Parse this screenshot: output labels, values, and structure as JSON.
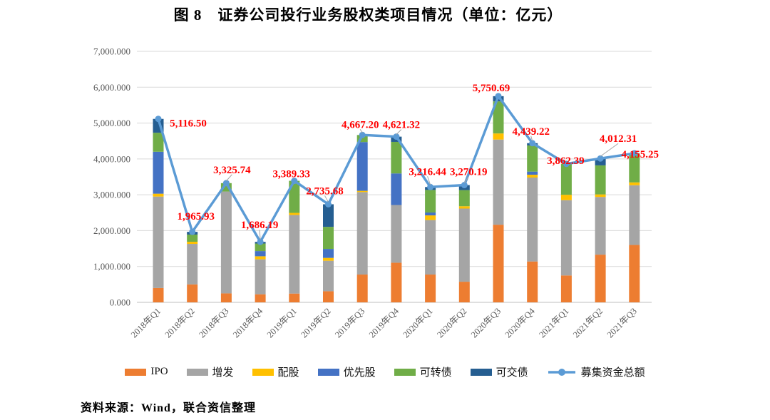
{
  "title": "图 8　证券公司投行业务股权类项目情况（单位：亿元）",
  "source_note": "资料来源：Wind，联合资信整理",
  "colors": {
    "ipo": "#ED7D31",
    "zengfa": "#A5A5A5",
    "peigu": "#FFC000",
    "youxiangu": "#4472C4",
    "kezhuanzhai": "#70AD47",
    "kejiaozhai": "#255E91",
    "line": "#5B9BD5",
    "data_label": "#FF0000",
    "grid": "#D9D9D9",
    "axis": "#BFBFBF",
    "tick_text": "#595959"
  },
  "chart_data": {
    "type": "combo: stacked-bar + line",
    "title": "图 8　证券公司投行业务股权类项目情况（单位：亿元）",
    "unit": "亿元",
    "legend_position": "bottom",
    "grid": "horizontal",
    "categories": [
      "2018年Q1",
      "2018年Q2",
      "2018年Q3",
      "2018年Q4",
      "2019年Q1",
      "2019年Q2",
      "2019年Q3",
      "2019年Q4",
      "2020年Q1",
      "2020年Q2",
      "2020年Q3",
      "2020年Q4",
      "2021年Q1",
      "2021年Q2",
      "2021年Q3"
    ],
    "bar_series": [
      {
        "name": "IPO",
        "color_key": "ipo",
        "values": [
          400,
          500,
          250,
          225,
          245,
          310,
          775,
          1105,
          775,
          575,
          2165,
          1140,
          750,
          1330,
          1600
        ]
      },
      {
        "name": "增发",
        "color_key": "zengfa",
        "values": [
          2550,
          1130,
          2840,
          975,
          2190,
          850,
          2300,
          1610,
          1520,
          2040,
          2375,
          2340,
          2100,
          1610,
          1665
        ]
      },
      {
        "name": "配股",
        "color_key": "peigu",
        "values": [
          80,
          60,
          0,
          85,
          60,
          80,
          35,
          0,
          130,
          65,
          170,
          80,
          150,
          70,
          80
        ]
      },
      {
        "name": "优先股",
        "color_key": "youxiangu",
        "values": [
          1170,
          0,
          0,
          145,
          0,
          250,
          1360,
          880,
          80,
          0,
          0,
          86,
          0,
          0,
          0
        ]
      },
      {
        "name": "可转债",
        "color_key": "kezhuanzhai",
        "values": [
          530,
          200,
          235,
          210,
          895,
          615,
          197,
          880,
          630,
          450,
          895,
          730,
          862,
          810,
          810
        ]
      },
      {
        "name": "可交债",
        "color_key": "kejiaozhai",
        "values": [
          386,
          76,
          0,
          46,
          0,
          630,
          0,
          146,
          81,
          140,
          145,
          63,
          0,
          192,
          0
        ]
      }
    ],
    "line_series": {
      "name": "募集资金总额",
      "color_key": "line",
      "values": [
        5116.5,
        1965.93,
        3325.74,
        1686.19,
        3389.33,
        2735.68,
        4667.2,
        4621.32,
        3216.44,
        3270.19,
        5750.69,
        4439.22,
        3862.39,
        4012.31,
        4155.25
      ],
      "labels": [
        "5,116.50",
        "1,965.93",
        "3,325.74",
        "1,686.19",
        "3,389.33",
        "2,735.68",
        "4,667.20",
        "4,621.32",
        "3,216.44",
        "3,270.19",
        "5,750.69",
        "4,439.22",
        "3,862.39",
        "4,012.31",
        "4,155.25"
      ]
    },
    "y_axis": {
      "min": 0,
      "max": 7000,
      "step": 1000,
      "tick_labels": [
        "0.000",
        "1,000.000",
        "2,000.000",
        "3,000.000",
        "4,000.000",
        "5,000.000",
        "6,000.000",
        "7,000.000"
      ]
    }
  }
}
